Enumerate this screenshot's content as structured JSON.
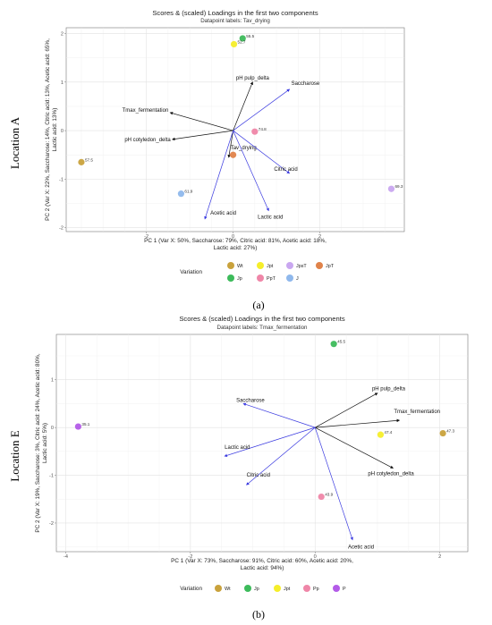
{
  "row_labels": [
    "Location A",
    "Location E"
  ],
  "panel_tags": [
    "(a)",
    "(b)"
  ],
  "chart_data": [
    {
      "type": "scatter",
      "title": "Scores & (scaled) Loadings in the first two components",
      "subtitle": "Datapoint labels: Tav_drying",
      "xlabel": "PC 1 (Var X: 50%, Saccharose: 79%, Citric acid: 81%, Acetic acid: 18%, Lactic acid: 27%)",
      "ylabel": "PC 2 (Var X: 22%, Saccharose: 14%, Citric acid: 13%, Acetic acid: 65%, Lactic acid: 13%)",
      "xlim": [
        -3.85,
        3.95
      ],
      "ylim": [
        -2.08,
        2.12
      ],
      "xticks": [
        -2,
        0,
        2
      ],
      "yticks": [
        -2,
        -1,
        0,
        1,
        2
      ],
      "grid": true,
      "legend_title": "Variation",
      "legend_position": "bottom",
      "groups": [
        {
          "name": "Wt",
          "color": "#c9a23c"
        },
        {
          "name": "Jp",
          "color": "#3dbb5b"
        },
        {
          "name": "Jpt",
          "color": "#f5ee2a"
        },
        {
          "name": "PpT",
          "color": "#ef86a8"
        },
        {
          "name": "JpsT",
          "color": "#c9a7f0"
        },
        {
          "name": "J",
          "color": "#8fb8ec"
        },
        {
          "name": "JpT",
          "color": "#e0834a"
        }
      ],
      "points": [
        {
          "x": -3.5,
          "y": -0.65,
          "label": "57.5",
          "group": "Wt"
        },
        {
          "x": 0.22,
          "y": 1.9,
          "label": "55.5",
          "group": "Jp"
        },
        {
          "x": 0.02,
          "y": 1.78,
          "label": "52.7",
          "group": "Jpt"
        },
        {
          "x": 0.5,
          "y": -0.02,
          "label": "74.8",
          "group": "PpT"
        },
        {
          "x": 3.65,
          "y": -1.2,
          "label": "69.3",
          "group": "JpsT"
        },
        {
          "x": -1.2,
          "y": -1.3,
          "label": "61.9",
          "group": "J"
        },
        {
          "x": 0.0,
          "y": -0.5,
          "label": "",
          "group": "JpT"
        }
      ],
      "loadings": [
        {
          "name": "Saccharose",
          "x": 1.3,
          "y": 0.85,
          "color": "#3a3ae0"
        },
        {
          "name": "pH pulp_delta",
          "x": 0.45,
          "y": 1.0,
          "color": "#111111"
        },
        {
          "name": "Tmax_fermentation",
          "x": -1.45,
          "y": 0.37,
          "color": "#111111"
        },
        {
          "name": "pH cotyledon_delta",
          "x": -1.4,
          "y": -0.18,
          "color": "#111111"
        },
        {
          "name": "Tav_drying",
          "x": -0.1,
          "y": -0.55,
          "color": "#111111"
        },
        {
          "name": "Citric acid",
          "x": 1.3,
          "y": -0.88,
          "color": "#3a3ae0"
        },
        {
          "name": "Lactic acid",
          "x": 0.82,
          "y": -1.65,
          "color": "#3a3ae0"
        },
        {
          "name": "Acetic acid",
          "x": -0.65,
          "y": -1.82,
          "color": "#3a3ae0"
        }
      ]
    },
    {
      "type": "scatter",
      "title": "Scores & (scaled) Loadings in the first two components",
      "subtitle": "Datapoint labels: Tmax_fermentation",
      "xlabel": "PC 1 (Var X: 73%, Saccharose: 91%, Citric acid: 60%, Acetic acid: 20%, Lactic acid: 94%)",
      "ylabel": "PC 2 (Var X: 19%, Saccharose: 3%, Citric acid: 24%, Acetic acid: 80%, Lactic acid: 5%)",
      "xlim": [
        -4.15,
        2.45
      ],
      "ylim": [
        -2.6,
        1.95
      ],
      "xticks": [
        -4,
        -2,
        0,
        2
      ],
      "yticks": [
        -2,
        -1,
        0,
        1
      ],
      "grid": true,
      "legend_title": "Variation",
      "legend_position": "bottom",
      "groups": [
        {
          "name": "Wt",
          "color": "#c9a23c"
        },
        {
          "name": "Jp",
          "color": "#3dbb5b"
        },
        {
          "name": "Jpt",
          "color": "#f5ee2a"
        },
        {
          "name": "Pp",
          "color": "#ef86a8"
        },
        {
          "name": "P",
          "color": "#b35be8"
        }
      ],
      "points": [
        {
          "x": -3.8,
          "y": 0.02,
          "label": "35.1",
          "group": "P"
        },
        {
          "x": 0.3,
          "y": 1.75,
          "label": "45.5",
          "group": "Jp"
        },
        {
          "x": 1.05,
          "y": -0.15,
          "label": "47.4",
          "group": "Jpt"
        },
        {
          "x": 2.05,
          "y": -0.12,
          "label": "47.3",
          "group": "Wt"
        },
        {
          "x": 0.1,
          "y": -1.45,
          "label": "43.9",
          "group": "Pp"
        }
      ],
      "loadings": [
        {
          "name": "pH pulp_delta",
          "x": 1.0,
          "y": 0.72,
          "color": "#111111"
        },
        {
          "name": "Tmax_fermentation",
          "x": 1.35,
          "y": 0.15,
          "color": "#111111"
        },
        {
          "name": "Saccharose",
          "x": -1.15,
          "y": 0.5,
          "color": "#3a3ae0"
        },
        {
          "name": "Lactic acid",
          "x": -1.45,
          "y": -0.6,
          "color": "#3a3ae0"
        },
        {
          "name": "Citric acid",
          "x": -1.1,
          "y": -1.2,
          "color": "#3a3ae0"
        },
        {
          "name": "pH cotyledon_delta",
          "x": 1.25,
          "y": -0.85,
          "color": "#111111"
        },
        {
          "name": "Acetic acid",
          "x": 0.6,
          "y": -2.35,
          "color": "#3a3ae0"
        }
      ]
    }
  ]
}
